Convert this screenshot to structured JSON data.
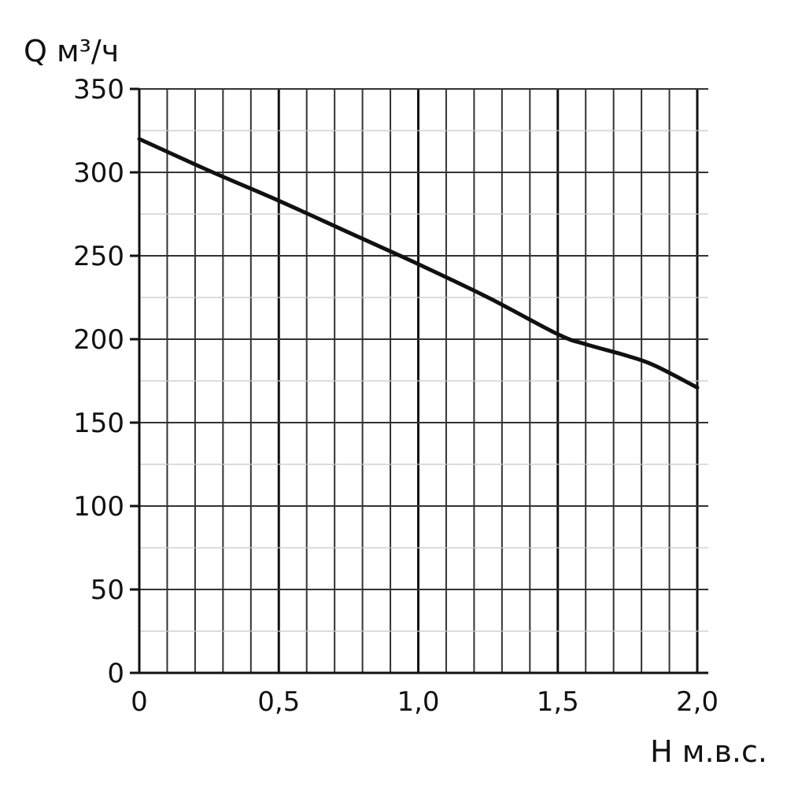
{
  "chart_data": {
    "type": "line",
    "ylabel": "Q м³/ч",
    "xlabel": "H м.в.с.",
    "xlim": [
      0,
      2.0
    ],
    "ylim": [
      0,
      350
    ],
    "x_tick_labels": [
      "0",
      "0,5",
      "1,0",
      "1,5",
      "2,0"
    ],
    "y_tick_labels": [
      "0",
      "50",
      "100",
      "150",
      "200",
      "250",
      "300",
      "350"
    ],
    "x_ticks": [
      0,
      0.5,
      1.0,
      1.5,
      2.0
    ],
    "y_ticks": [
      0,
      50,
      100,
      150,
      200,
      250,
      300,
      350
    ],
    "grid": true,
    "series": [
      {
        "x": [
          0,
          0.25,
          0.5,
          0.75,
          1.0,
          1.25,
          1.5,
          1.6,
          1.75,
          1.85,
          2.0
        ],
        "values": [
          320,
          301,
          283,
          264,
          245,
          225,
          203,
          197,
          190,
          184,
          171
        ]
      }
    ]
  }
}
